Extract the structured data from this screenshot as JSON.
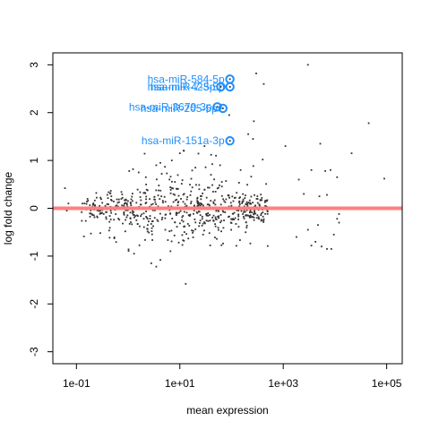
{
  "chart_data": {
    "type": "scatter",
    "xlabel": "mean expression",
    "ylabel": "log fold change",
    "x_scale": "log10",
    "xlim": [
      0.035,
      200000
    ],
    "ylim": [
      -3.25,
      3.25
    ],
    "x_ticks": [
      {
        "value": 0.1,
        "label": "1e-01"
      },
      {
        "value": 10,
        "label": "1e+01"
      },
      {
        "value": 1000,
        "label": "1e+03"
      },
      {
        "value": 100000,
        "label": "1e+05"
      }
    ],
    "y_ticks": [
      {
        "value": -3,
        "label": "-3"
      },
      {
        "value": -2,
        "label": "-2"
      },
      {
        "value": -1,
        "label": "-1"
      },
      {
        "value": 0,
        "label": "0"
      },
      {
        "value": 1,
        "label": "1"
      },
      {
        "value": 2,
        "label": "2"
      },
      {
        "value": 3,
        "label": "3"
      }
    ],
    "grid": false,
    "reference_line": {
      "y": 0,
      "color": "#ff7f7f"
    },
    "point_color": "#333333",
    "highlight_color": "#1e90ff",
    "highlighted": [
      {
        "label": "hsa-miR-584-5p",
        "x": 93,
        "y": 2.7
      },
      {
        "label": "hsa-miR-423-5p",
        "x": 93,
        "y": 2.54
      },
      {
        "label": "hsa-miR-7-5p",
        "x": 62,
        "y": 2.54
      },
      {
        "label": "hsa-miR-3679-3p",
        "x": 53,
        "y": 2.12
      },
      {
        "label": "hsa-miR-205-5p",
        "x": 68,
        "y": 2.09
      },
      {
        "label": "hsa-miR-151a-3p",
        "x": 93,
        "y": 1.41
      }
    ],
    "points": [
      {
        "x": 300,
        "y": 2.82
      },
      {
        "x": 3000,
        "y": 3.0
      },
      {
        "x": 420,
        "y": 2.6
      },
      {
        "x": 270,
        "y": 1.82
      },
      {
        "x": 210,
        "y": 1.55
      },
      {
        "x": 260,
        "y": 1.45
      },
      {
        "x": 90,
        "y": 1.95
      },
      {
        "x": 1100,
        "y": 1.3
      },
      {
        "x": 5200,
        "y": 1.35
      },
      {
        "x": 45000,
        "y": 1.78
      },
      {
        "x": 90000,
        "y": 0.62
      },
      {
        "x": 21000,
        "y": 1.15
      },
      {
        "x": 6500,
        "y": 0.78
      },
      {
        "x": 8200,
        "y": 0.8
      },
      {
        "x": 11000,
        "y": 0.65
      },
      {
        "x": 3500,
        "y": 0.8
      },
      {
        "x": 2000,
        "y": 0.6
      },
      {
        "x": 7000,
        "y": 0.28
      },
      {
        "x": 5000,
        "y": 0.25
      },
      {
        "x": 2500,
        "y": 0.3
      },
      {
        "x": 12000,
        "y": -0.12
      },
      {
        "x": 11000,
        "y": -0.22
      },
      {
        "x": 1800,
        "y": -0.6
      },
      {
        "x": 3500,
        "y": -0.78
      },
      {
        "x": 4200,
        "y": -0.7
      },
      {
        "x": 5500,
        "y": -0.8
      },
      {
        "x": 7000,
        "y": -0.85
      },
      {
        "x": 8500,
        "y": -0.85
      },
      {
        "x": 9500,
        "y": -0.55
      },
      {
        "x": 12000,
        "y": -0.3
      },
      {
        "x": 4700,
        "y": -0.35
      },
      {
        "x": 3000,
        "y": -0.45
      },
      {
        "x": 13,
        "y": -1.58
      },
      {
        "x": 3.5,
        "y": -1.22
      },
      {
        "x": 2.8,
        "y": -1.15
      },
      {
        "x": 4.2,
        "y": -1.08
      },
      {
        "x": 1.3,
        "y": -0.95
      },
      {
        "x": 0.06,
        "y": 0.42
      },
      {
        "x": 0.07,
        "y": 0.1
      },
      {
        "x": 0.055,
        "y": 0.02
      },
      {
        "x": 0.065,
        "y": -0.05
      },
      {
        "x": 10,
        "y": 1.15
      },
      {
        "x": 12,
        "y": 1.2
      },
      {
        "x": 30,
        "y": 1.3
      },
      {
        "x": 3.5,
        "y": 0.9
      },
      {
        "x": 4.2,
        "y": 0.95
      },
      {
        "x": 7,
        "y": 1.0
      },
      {
        "x": 50,
        "y": 1.1
      },
      {
        "x": 60,
        "y": 0.9
      },
      {
        "x": 150,
        "y": 0.8
      },
      {
        "x": 40,
        "y": 0.7
      },
      {
        "x": 20,
        "y": 0.85
      },
      {
        "x": 1.6,
        "y": 0.75
      },
      {
        "x": 2.2,
        "y": 0.65
      }
    ]
  }
}
